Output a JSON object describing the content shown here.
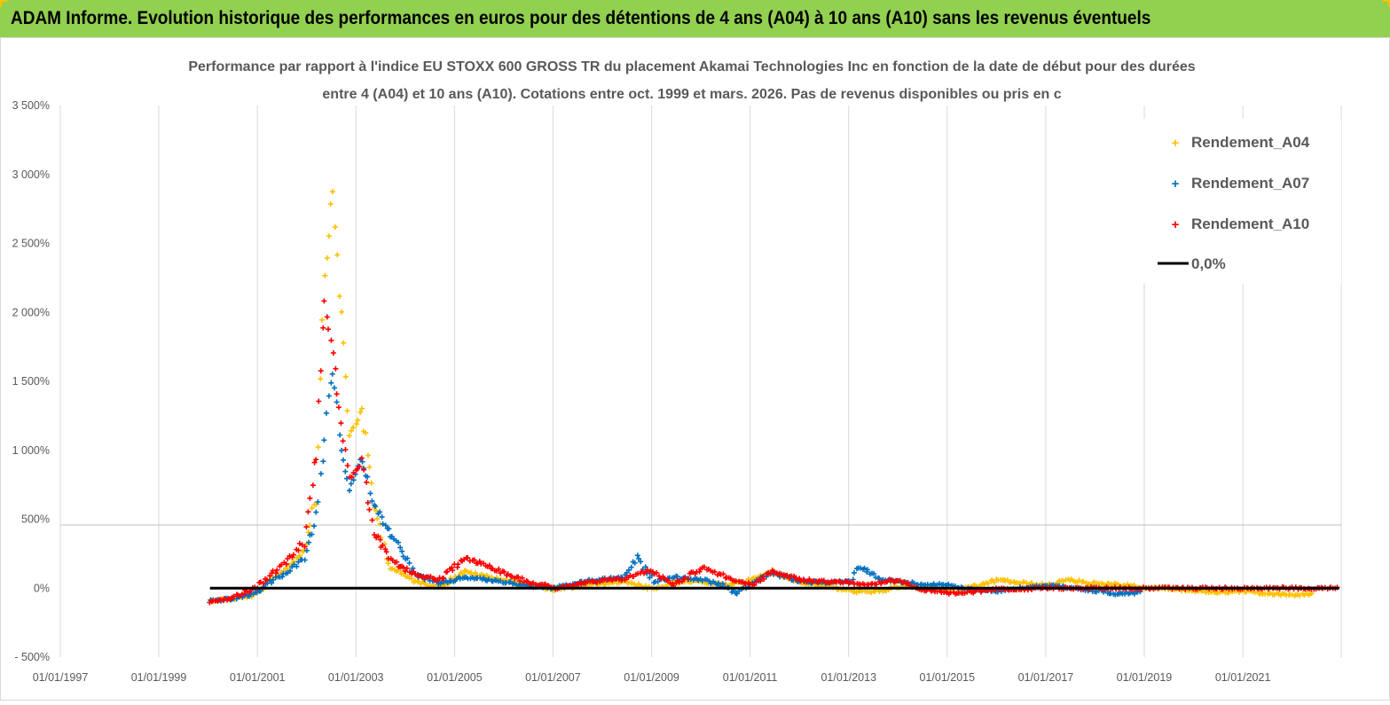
{
  "banner": {
    "title": "ADAM Informe. Evolution historique des performances en euros pour des détentions de 4 ans (A04) à 10 ans (A10) sans les revenus éventuels",
    "background": "#92d050"
  },
  "chart_data": {
    "type": "scatter",
    "title_line1": "Performance par rapport à l'indice EU STOXX 600 GROSS TR  du placement  Akamai Technologies Inc en fonction de la date de début pour des durées",
    "title_line2": "entre 4 (A04) et 10 ans (A10).  Cotations entre oct. 1999 et mars. 2026. Pas de revenus disponibles ou pris en c",
    "xlabel": "",
    "ylabel": "",
    "x_range": [
      "01/01/1997",
      "31/12/2022"
    ],
    "x_ticks": [
      "01/01/1997",
      "01/01/1999",
      "01/01/2001",
      "01/01/2003",
      "01/01/2005",
      "01/01/2007",
      "01/01/2009",
      "01/01/2011",
      "01/01/2013",
      "01/01/2015",
      "01/01/2017",
      "01/01/2019",
      "01/01/2021"
    ],
    "y_range": [
      -500,
      3500
    ],
    "y_ticks": [
      -500,
      0,
      500,
      1000,
      1500,
      2000,
      2500,
      3000,
      3500
    ],
    "y_tick_labels": [
      "- 500%",
      "0%",
      "500%",
      "1 000%",
      "1 500%",
      "2 000%",
      "2 500%",
      "3 000%",
      "3 500%"
    ],
    "grid": "vertical",
    "legend_position": "top-right",
    "series": [
      {
        "name": "Rendement_A04",
        "color": "#ffc000",
        "marker": "+",
        "points": [
          [
            "2000-01",
            -90
          ],
          [
            "2000-06",
            -80
          ],
          [
            "2000-12",
            -50
          ],
          [
            "2001-04",
            60
          ],
          [
            "2001-08",
            150
          ],
          [
            "2001-12",
            280
          ],
          [
            "2002-03",
            700
          ],
          [
            "2002-05",
            2300
          ],
          [
            "2002-07",
            2880
          ],
          [
            "2002-09",
            1950
          ],
          [
            "2002-11",
            1100
          ],
          [
            "2003-02",
            1300
          ],
          [
            "2003-05",
            600
          ],
          [
            "2003-09",
            150
          ],
          [
            "2004-03",
            50
          ],
          [
            "2004-09",
            10
          ],
          [
            "2005-03",
            120
          ],
          [
            "2005-09",
            80
          ],
          [
            "2006-06",
            30
          ],
          [
            "2007-01",
            -10
          ],
          [
            "2007-09",
            20
          ],
          [
            "2008-06",
            50
          ],
          [
            "2009-01",
            -10
          ],
          [
            "2009-06",
            40
          ],
          [
            "2010-01",
            50
          ],
          [
            "2010-06",
            20
          ],
          [
            "2011-01",
            60
          ],
          [
            "2011-06",
            120
          ],
          [
            "2012-01",
            40
          ],
          [
            "2012-06",
            20
          ],
          [
            "2013-01",
            -20
          ],
          [
            "2013-06",
            -30
          ],
          [
            "2014-01",
            10
          ],
          [
            "2014-06",
            10
          ],
          [
            "2015-01",
            -10
          ],
          [
            "2015-06",
            0
          ],
          [
            "2016-01",
            60
          ],
          [
            "2016-06",
            40
          ],
          [
            "2017-01",
            20
          ],
          [
            "2017-06",
            60
          ],
          [
            "2018-01",
            30
          ],
          [
            "2018-06",
            30
          ],
          [
            "2019-01",
            0
          ],
          [
            "2019-06",
            0
          ],
          [
            "2020-01",
            -20
          ],
          [
            "2020-06",
            -30
          ],
          [
            "2021-01",
            -20
          ],
          [
            "2021-06",
            -40
          ],
          [
            "2022-01",
            -50
          ],
          [
            "2022-06",
            -40
          ]
        ]
      },
      {
        "name": "Rendement_A07",
        "color": "#0070c0",
        "marker": "+",
        "points": [
          [
            "2000-01",
            -90
          ],
          [
            "2000-06",
            -80
          ],
          [
            "2000-12",
            -40
          ],
          [
            "2001-04",
            50
          ],
          [
            "2001-08",
            120
          ],
          [
            "2001-12",
            220
          ],
          [
            "2002-03",
            500
          ],
          [
            "2002-05",
            1100
          ],
          [
            "2002-07",
            1600
          ],
          [
            "2002-09",
            1000
          ],
          [
            "2002-11",
            700
          ],
          [
            "2003-02",
            950
          ],
          [
            "2003-05",
            600
          ],
          [
            "2003-09",
            400
          ],
          [
            "2004-03",
            100
          ],
          [
            "2004-09",
            30
          ],
          [
            "2005-03",
            80
          ],
          [
            "2005-09",
            60
          ],
          [
            "2006-06",
            20
          ],
          [
            "2007-01",
            0
          ],
          [
            "2007-09",
            50
          ],
          [
            "2008-06",
            80
          ],
          [
            "2008-09",
            220
          ],
          [
            "2009-01",
            50
          ],
          [
            "2009-06",
            80
          ],
          [
            "2010-01",
            60
          ],
          [
            "2010-06",
            20
          ],
          [
            "2010-09",
            -40
          ],
          [
            "2011-01",
            40
          ],
          [
            "2011-06",
            110
          ],
          [
            "2012-01",
            50
          ],
          [
            "2012-06",
            40
          ],
          [
            "2013-01",
            50
          ],
          [
            "2013-03",
            160
          ],
          [
            "2013-09",
            60
          ],
          [
            "2014-06",
            30
          ],
          [
            "2015-01",
            20
          ],
          [
            "2015-06",
            -10
          ],
          [
            "2016-01",
            -20
          ],
          [
            "2016-06",
            0
          ],
          [
            "2017-01",
            20
          ],
          [
            "2017-06",
            0
          ],
          [
            "2018-01",
            -20
          ],
          [
            "2018-06",
            -40
          ],
          [
            "2018-12",
            -30
          ]
        ]
      },
      {
        "name": "Rendement_A10",
        "color": "#ff0000",
        "marker": "+",
        "points": [
          [
            "2000-01",
            -95
          ],
          [
            "2000-06",
            -70
          ],
          [
            "2000-12",
            0
          ],
          [
            "2001-04",
            100
          ],
          [
            "2001-08",
            200
          ],
          [
            "2001-12",
            350
          ],
          [
            "2002-03",
            1000
          ],
          [
            "2002-05",
            2100
          ],
          [
            "2002-07",
            1700
          ],
          [
            "2002-09",
            1200
          ],
          [
            "2002-11",
            800
          ],
          [
            "2003-02",
            900
          ],
          [
            "2003-05",
            400
          ],
          [
            "2003-09",
            200
          ],
          [
            "2004-03",
            100
          ],
          [
            "2004-09",
            60
          ],
          [
            "2005-03",
            220
          ],
          [
            "2005-09",
            160
          ],
          [
            "2006-06",
            50
          ],
          [
            "2007-01",
            0
          ],
          [
            "2007-09",
            40
          ],
          [
            "2008-06",
            70
          ],
          [
            "2008-12",
            130
          ],
          [
            "2009-06",
            30
          ],
          [
            "2010-01",
            150
          ],
          [
            "2010-06",
            90
          ],
          [
            "2011-01",
            20
          ],
          [
            "2011-06",
            120
          ],
          [
            "2012-01",
            60
          ],
          [
            "2012-06",
            50
          ],
          [
            "2013-01",
            40
          ],
          [
            "2013-06",
            30
          ],
          [
            "2014-01",
            60
          ],
          [
            "2014-06",
            -10
          ],
          [
            "2015-01",
            -40
          ],
          [
            "2015-06",
            -30
          ],
          [
            "2016-01",
            0
          ],
          [
            "2016-06",
            -10
          ],
          [
            "2017-01",
            0
          ],
          [
            "2018-01",
            0
          ],
          [
            "2019-01",
            0
          ],
          [
            "2020-01",
            0
          ],
          [
            "2021-01",
            0
          ],
          [
            "2022-01",
            0
          ],
          [
            "2022-12",
            0
          ]
        ]
      },
      {
        "name": "0,0%",
        "color": "#000000",
        "marker": "line",
        "points": [
          [
            "2000-01",
            0
          ],
          [
            "2022-12",
            0
          ]
        ]
      }
    ]
  }
}
